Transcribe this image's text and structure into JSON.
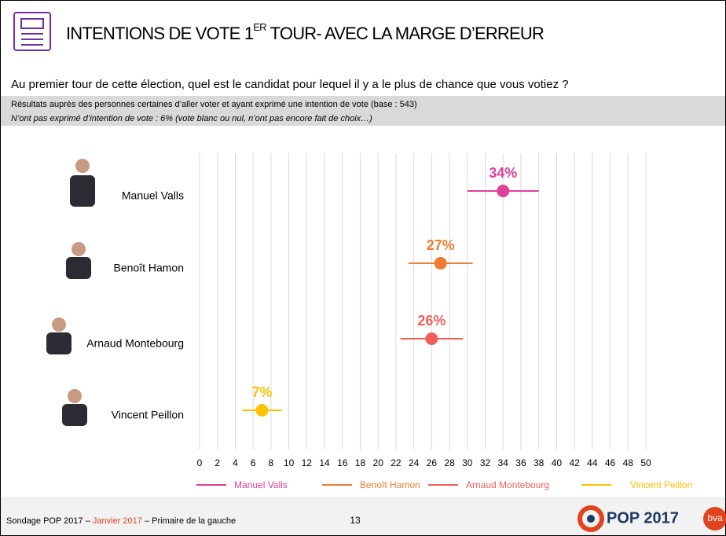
{
  "header": {
    "title_parts": [
      "INTENTIONS DE VOTE 1",
      "ER",
      " TOUR- AVEC LA MARGE D’ERREUR"
    ],
    "question": "Au premier tour de cette élection, quel est le candidat pour lequel il y a le plus de chance que vous votiez ?",
    "base": "Résultats auprès des personnes certaines d’aller voter et ayant exprimé une intention de vote (base : 543)",
    "note": "N’ont pas exprimé d’intention de vote : 6% (vote blanc ou nul, n’ont pas encore fait de choix…)"
  },
  "chart_data": {
    "type": "dot_error",
    "categories": [
      "Manuel Valls",
      "Benoît Hamon",
      "Arnaud Montebourg",
      "Vincent Peillon"
    ],
    "values": [
      34,
      27,
      26,
      7
    ],
    "value_labels": [
      "34%",
      "27%",
      "26%",
      "7%"
    ],
    "errors": [
      4,
      3.6,
      3.5,
      2.2
    ],
    "colors": [
      "#e0409a",
      "#ed7d31",
      "#f0605a",
      "#ffc000"
    ],
    "xlim": [
      0,
      50
    ],
    "xticks": [
      0,
      2,
      4,
      6,
      8,
      10,
      12,
      14,
      16,
      18,
      20,
      22,
      24,
      26,
      28,
      30,
      32,
      34,
      36,
      38,
      40,
      42,
      44,
      46,
      48,
      50
    ],
    "grid": true
  },
  "footer": {
    "source_parts": [
      "Sondage POP 2017 – ",
      "Janvier 2017",
      " – Primaire de la gauche"
    ],
    "page": "13",
    "logo": "POP 2017",
    "brand": "bva"
  }
}
